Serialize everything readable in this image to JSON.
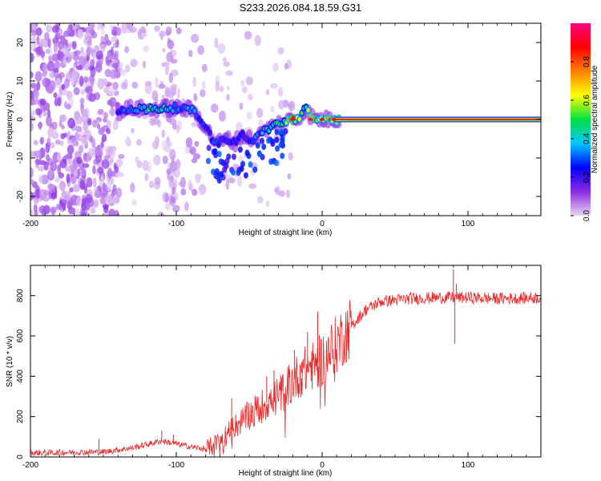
{
  "title": "S233.2026.084.18.59.G31",
  "chart_data": [
    {
      "type": "heatmap",
      "name": "spectrogram",
      "xlabel": "Height of straight line (km)",
      "ylabel": "Frequency (Hz)",
      "xlim": [
        -200,
        150
      ],
      "ylim": [
        -25,
        25
      ],
      "xticks": [
        -200,
        -100,
        0,
        100
      ],
      "xtick_labels": [
        "-200",
        "-100",
        "0",
        "100"
      ],
      "yticks": [
        -20,
        -10,
        0,
        10,
        20
      ],
      "ytick_labels": [
        "-20",
        "-10",
        "0",
        "10",
        "20"
      ],
      "colorbar": {
        "label": "Normalized spectral amplitude",
        "range": [
          0,
          1
        ],
        "ticks": [
          0.0,
          0.2,
          0.4,
          0.6,
          0.8
        ],
        "tick_labels": [
          "0.0",
          "0.2",
          "0.4",
          "0.6",
          "0.8"
        ],
        "colormap": [
          "#e9d4f5",
          "#8a2be2",
          "#0000ff",
          "#00c8ff",
          "#00e040",
          "#ffff00",
          "#ff8000",
          "#ff0000",
          "#ff0080"
        ]
      },
      "ridge": {
        "x": [
          -140,
          -130,
          -120,
          -110,
          -100,
          -90,
          -85,
          -80,
          -75,
          -70,
          -65,
          -60,
          -55,
          -50,
          -45,
          -40,
          -35,
          -30,
          -25,
          -20,
          -15,
          -12,
          -8,
          -5,
          0,
          5,
          10,
          20,
          40,
          60,
          80,
          100,
          120,
          150
        ],
        "y": [
          2,
          3,
          2.5,
          3,
          3,
          2.5,
          1,
          -2,
          -5,
          -6,
          -5,
          -6,
          -4,
          -5,
          -5,
          -3,
          -2,
          -1,
          -0.5,
          0,
          0.5,
          3,
          1,
          0,
          0,
          0,
          0,
          0,
          0,
          0,
          0,
          0,
          0,
          0
        ],
        "amplitude": [
          0.3,
          0.35,
          0.5,
          0.55,
          0.4,
          0.35,
          0.3,
          0.25,
          0.3,
          0.28,
          0.25,
          0.25,
          0.22,
          0.25,
          0.35,
          0.4,
          0.45,
          0.55,
          0.65,
          0.8,
          0.75,
          0.4,
          0.7,
          0.8,
          0.85,
          0.85,
          0.88,
          0.9,
          0.9,
          0.9,
          0.9,
          0.9,
          0.9,
          0.9
        ]
      }
    },
    {
      "type": "line",
      "name": "snr",
      "xlabel": "Height of straight line (km)",
      "ylabel": "SNR (10 * v/v)",
      "xlim": [
        -200,
        150
      ],
      "ylim": [
        0,
        950
      ],
      "xticks": [
        -200,
        -100,
        0,
        100
      ],
      "xtick_labels": [
        "-200",
        "-100",
        "0",
        "100"
      ],
      "yticks": [
        0,
        200,
        400,
        600,
        800
      ],
      "ytick_labels": [
        "0",
        "200",
        "400",
        "600",
        "800"
      ],
      "color": "#e8292a",
      "trend": {
        "x": [
          -200,
          -150,
          -130,
          -110,
          -90,
          -80,
          -70,
          -60,
          -50,
          -40,
          -30,
          -20,
          -10,
          0,
          10,
          20,
          30,
          40,
          60,
          80,
          100,
          120,
          150
        ],
        "y": [
          20,
          25,
          45,
          80,
          50,
          40,
          80,
          150,
          210,
          260,
          300,
          380,
          440,
          480,
          560,
          650,
          730,
          770,
          785,
          790,
          790,
          785,
          790
        ]
      },
      "spikes": {
        "x": [
          -153,
          -110,
          -102,
          -62,
          -48,
          -38,
          -33,
          -19,
          -14,
          -10,
          -3,
          90,
          91,
          92
        ],
        "y": [
          90,
          130,
          110,
          290,
          230,
          400,
          430,
          530,
          470,
          620,
          720,
          930,
          560,
          860
        ]
      }
    }
  ]
}
